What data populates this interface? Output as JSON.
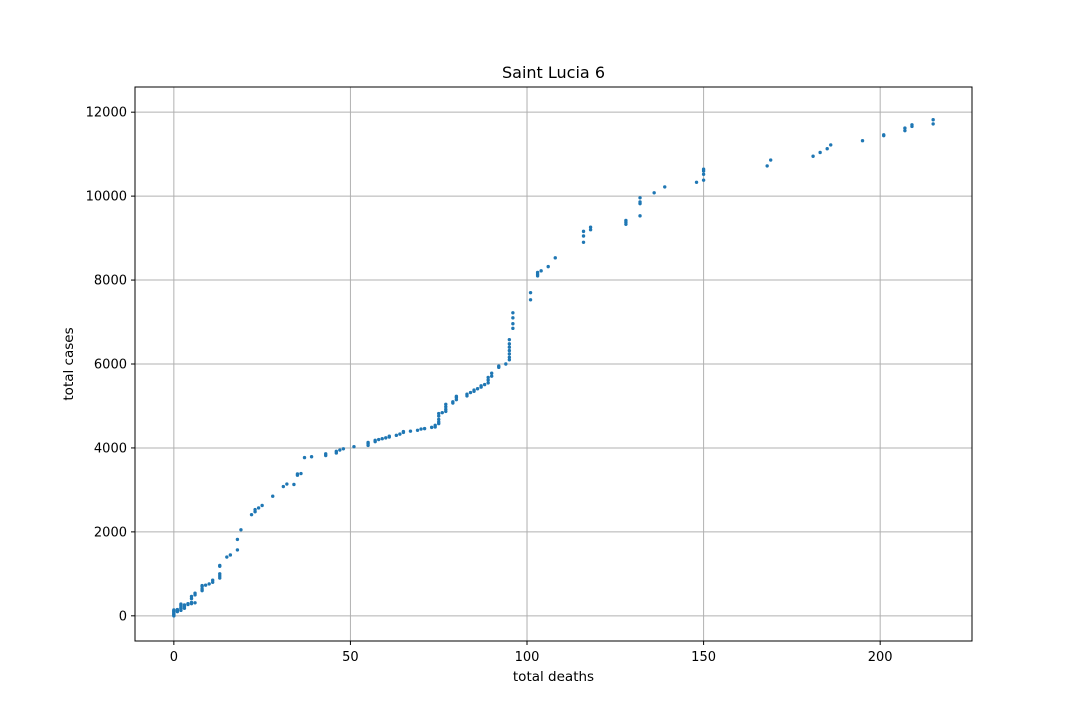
{
  "chart_data": {
    "type": "scatter",
    "title": "Saint Lucia 6",
    "xlabel": "total deaths",
    "ylabel": "total cases",
    "xlim": [
      -11,
      226
    ],
    "ylim": [
      -600,
      12600
    ],
    "xticks": [
      0,
      50,
      100,
      150,
      200
    ],
    "yticks": [
      0,
      2000,
      4000,
      6000,
      8000,
      10000,
      12000
    ],
    "grid": true,
    "marker_color": "#1f77b4",
    "series": [
      {
        "points": [
          [
            0,
            0
          ],
          [
            0,
            20
          ],
          [
            0,
            40
          ],
          [
            0,
            60
          ],
          [
            0,
            80
          ],
          [
            0,
            100
          ],
          [
            0,
            120
          ],
          [
            0,
            140
          ],
          [
            1,
            100
          ],
          [
            1,
            130
          ],
          [
            1,
            150
          ],
          [
            2,
            130
          ],
          [
            2,
            170
          ],
          [
            2,
            200
          ],
          [
            2,
            240
          ],
          [
            2,
            280
          ],
          [
            3,
            180
          ],
          [
            3,
            220
          ],
          [
            3,
            260
          ],
          [
            4,
            270
          ],
          [
            4,
            290
          ],
          [
            5,
            290
          ],
          [
            5,
            320
          ],
          [
            5,
            410
          ],
          [
            5,
            460
          ],
          [
            6,
            310
          ],
          [
            6,
            500
          ],
          [
            6,
            540
          ],
          [
            8,
            600
          ],
          [
            8,
            640
          ],
          [
            8,
            700
          ],
          [
            8,
            720
          ],
          [
            9,
            730
          ],
          [
            10,
            760
          ],
          [
            11,
            800
          ],
          [
            11,
            850
          ],
          [
            13,
            900
          ],
          [
            13,
            950
          ],
          [
            13,
            1000
          ],
          [
            13,
            1180
          ],
          [
            13,
            1200
          ],
          [
            15,
            1400
          ],
          [
            16,
            1450
          ],
          [
            18,
            1570
          ],
          [
            18,
            1820
          ],
          [
            19,
            2050
          ],
          [
            22,
            2410
          ],
          [
            23,
            2480
          ],
          [
            23,
            2530
          ],
          [
            24,
            2570
          ],
          [
            25,
            2630
          ],
          [
            28,
            2850
          ],
          [
            31,
            3080
          ],
          [
            32,
            3140
          ],
          [
            34,
            3130
          ],
          [
            35,
            3350
          ],
          [
            35,
            3380
          ],
          [
            36,
            3390
          ],
          [
            37,
            3770
          ],
          [
            39,
            3790
          ],
          [
            43,
            3820
          ],
          [
            43,
            3860
          ],
          [
            46,
            3880
          ],
          [
            46,
            3920
          ],
          [
            47,
            3950
          ],
          [
            48,
            3980
          ],
          [
            51,
            4030
          ],
          [
            55,
            4060
          ],
          [
            55,
            4100
          ],
          [
            55,
            4130
          ],
          [
            57,
            4150
          ],
          [
            57,
            4180
          ],
          [
            58,
            4200
          ],
          [
            59,
            4220
          ],
          [
            60,
            4240
          ],
          [
            61,
            4260
          ],
          [
            61,
            4280
          ],
          [
            63,
            4300
          ],
          [
            64,
            4330
          ],
          [
            65,
            4370
          ],
          [
            65,
            4390
          ],
          [
            67,
            4400
          ],
          [
            69,
            4420
          ],
          [
            70,
            4450
          ],
          [
            71,
            4460
          ],
          [
            73,
            4490
          ],
          [
            74,
            4500
          ],
          [
            74,
            4540
          ],
          [
            75,
            4580
          ],
          [
            75,
            4620
          ],
          [
            75,
            4680
          ],
          [
            75,
            4760
          ],
          [
            75,
            4820
          ],
          [
            76,
            4840
          ],
          [
            77,
            4870
          ],
          [
            77,
            4920
          ],
          [
            77,
            4980
          ],
          [
            77,
            5040
          ],
          [
            79,
            5070
          ],
          [
            79,
            5100
          ],
          [
            80,
            5150
          ],
          [
            80,
            5200
          ],
          [
            80,
            5230
          ],
          [
            83,
            5240
          ],
          [
            83,
            5280
          ],
          [
            84,
            5320
          ],
          [
            85,
            5350
          ],
          [
            85,
            5380
          ],
          [
            86,
            5410
          ],
          [
            87,
            5450
          ],
          [
            87,
            5480
          ],
          [
            88,
            5510
          ],
          [
            89,
            5550
          ],
          [
            89,
            5620
          ],
          [
            89,
            5680
          ],
          [
            90,
            5710
          ],
          [
            90,
            5780
          ],
          [
            92,
            5920
          ],
          [
            92,
            5950
          ],
          [
            94,
            6000
          ],
          [
            95,
            6100
          ],
          [
            95,
            6160
          ],
          [
            95,
            6240
          ],
          [
            95,
            6320
          ],
          [
            95,
            6400
          ],
          [
            95,
            6480
          ],
          [
            95,
            6580
          ],
          [
            96,
            6850
          ],
          [
            96,
            6960
          ],
          [
            96,
            7100
          ],
          [
            96,
            7220
          ],
          [
            101,
            7530
          ],
          [
            101,
            7700
          ],
          [
            103,
            8100
          ],
          [
            103,
            8140
          ],
          [
            103,
            8180
          ],
          [
            104,
            8220
          ],
          [
            106,
            8320
          ],
          [
            108,
            8530
          ],
          [
            116,
            8900
          ],
          [
            116,
            9050
          ],
          [
            116,
            9160
          ],
          [
            118,
            9200
          ],
          [
            118,
            9260
          ],
          [
            128,
            9330
          ],
          [
            128,
            9380
          ],
          [
            128,
            9420
          ],
          [
            132,
            9530
          ],
          [
            132,
            9820
          ],
          [
            132,
            9860
          ],
          [
            132,
            9960
          ],
          [
            136,
            10080
          ],
          [
            139,
            10220
          ],
          [
            148,
            10330
          ],
          [
            150,
            10380
          ],
          [
            150,
            10520
          ],
          [
            150,
            10600
          ],
          [
            150,
            10640
          ],
          [
            168,
            10720
          ],
          [
            169,
            10860
          ],
          [
            181,
            10950
          ],
          [
            183,
            11040
          ],
          [
            185,
            11130
          ],
          [
            186,
            11220
          ],
          [
            195,
            11320
          ],
          [
            201,
            11440
          ],
          [
            201,
            11460
          ],
          [
            207,
            11560
          ],
          [
            207,
            11620
          ],
          [
            209,
            11660
          ],
          [
            209,
            11700
          ],
          [
            215,
            11720
          ],
          [
            215,
            11820
          ]
        ]
      }
    ]
  }
}
